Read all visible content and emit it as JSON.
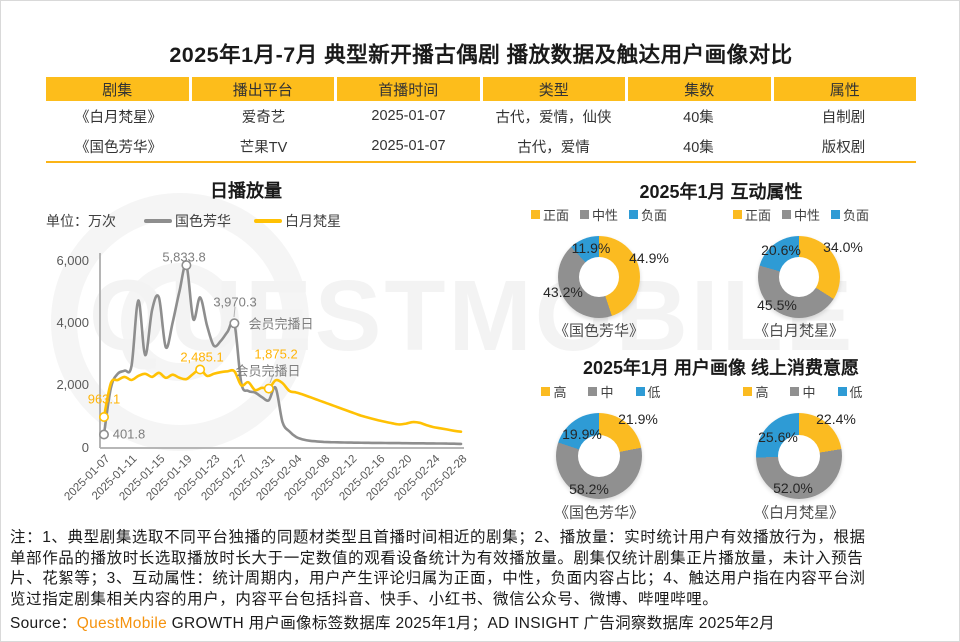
{
  "title": "2025年1月-7月 典型新开播古偶剧 播放数据及触达用户画像对比",
  "table": {
    "headers": [
      "剧集",
      "播出平台",
      "首播时间",
      "类型",
      "集数",
      "属性"
    ],
    "rows": [
      [
        "《白月梵星》",
        "爱奇艺",
        "2025-01-07",
        "古代，爱情，仙侠",
        "40集",
        "自制剧"
      ],
      [
        "《国色芳华》",
        "芒果TV",
        "2025-01-07",
        "古代，爱情",
        "40集",
        "版权剧"
      ]
    ]
  },
  "chart_data": [
    {
      "id": "daily-plays",
      "type": "line",
      "title": "日播放量",
      "unit": "单位：万次",
      "ylim": [
        0,
        6000
      ],
      "y_tick_labels": [
        "6,000",
        "4,000",
        "2,000",
        "0"
      ],
      "x_tick_labels": [
        "2025-01-07",
        "2025-01-11",
        "2025-01-15",
        "2025-01-19",
        "2025-01-23",
        "2025-01-27",
        "2025-01-31",
        "2025-02-04",
        "2025-02-08",
        "2025-02-12",
        "2025-02-16",
        "2025-02-20",
        "2025-02-24",
        "2025-02-28"
      ],
      "x_tick_indices": [
        0,
        4,
        8,
        12,
        16,
        20,
        24,
        28,
        32,
        36,
        40,
        44,
        48,
        52
      ],
      "x": [
        "2025-01-07",
        "2025-01-08",
        "2025-01-09",
        "2025-01-10",
        "2025-01-11",
        "2025-01-12",
        "2025-01-13",
        "2025-01-14",
        "2025-01-15",
        "2025-01-16",
        "2025-01-17",
        "2025-01-18",
        "2025-01-19",
        "2025-01-20",
        "2025-01-21",
        "2025-01-22",
        "2025-01-23",
        "2025-01-24",
        "2025-01-25",
        "2025-01-26",
        "2025-01-27",
        "2025-01-28",
        "2025-01-29",
        "2025-01-30",
        "2025-01-31",
        "2025-02-01",
        "2025-02-02",
        "2025-02-03",
        "2025-02-04",
        "2025-02-05",
        "2025-02-06",
        "2025-02-07",
        "2025-02-08",
        "2025-02-09",
        "2025-02-10",
        "2025-02-11",
        "2025-02-12",
        "2025-02-13",
        "2025-02-14",
        "2025-02-15",
        "2025-02-16",
        "2025-02-17",
        "2025-02-18",
        "2025-02-19",
        "2025-02-20",
        "2025-02-21",
        "2025-02-22",
        "2025-02-23",
        "2025-02-24",
        "2025-02-25",
        "2025-02-26",
        "2025-02-27",
        "2025-02-28"
      ],
      "series": [
        {
          "name": "国色芳华",
          "color": "#8E8E8E",
          "values": [
            401.8,
            1900,
            2350,
            2450,
            2600,
            4700,
            2950,
            4400,
            4800,
            3200,
            4000,
            5000,
            5833.8,
            4100,
            4800,
            3900,
            3250,
            3400,
            3700,
            3970.3,
            2050,
            1800,
            1750,
            1600,
            1500,
            1900,
            800,
            500,
            320,
            240,
            200,
            180,
            165,
            155,
            150,
            145,
            140,
            138,
            135,
            132,
            130,
            128,
            126,
            124,
            122,
            120,
            118,
            116,
            114,
            112,
            110,
            105,
            100
          ]
        },
        {
          "name": "白月梵星",
          "color": "#FFC104",
          "values": [
            963.1,
            2050,
            2150,
            2250,
            2150,
            2280,
            2350,
            2250,
            2380,
            2220,
            2320,
            2220,
            2180,
            2350,
            2485.1,
            2280,
            2350,
            2400,
            2430,
            2430,
            1980,
            2080,
            1830,
            1900,
            1875.2,
            2140,
            2050,
            1800,
            1750,
            1680,
            1600,
            1520,
            1440,
            1360,
            1280,
            1200,
            1120,
            1040,
            970,
            910,
            855,
            805,
            760,
            725,
            750,
            800,
            775,
            700,
            640,
            600,
            560,
            520,
            490
          ]
        }
      ],
      "callouts": [
        {
          "series": "国色芳华",
          "date": "2025-01-07",
          "value": 401.8,
          "label": "401.8"
        },
        {
          "series": "国色芳华",
          "date": "2025-01-19",
          "value": 5833.8,
          "label": "5,833.8"
        },
        {
          "series": "国色芳华",
          "date": "2025-01-26",
          "value": 3970.3,
          "label": "3,970.3",
          "note": "会员完播日"
        },
        {
          "series": "白月梵星",
          "date": "2025-01-07",
          "value": 963.1,
          "label": "963.1"
        },
        {
          "series": "白月梵星",
          "date": "2025-01-21",
          "value": 2485.1,
          "label": "2,485.1"
        },
        {
          "series": "白月梵星",
          "date": "2025-01-31",
          "value": 1875.2,
          "label": "1,875.2",
          "note": "会员完播日"
        }
      ]
    },
    {
      "id": "interaction",
      "type": "pie",
      "title": "2025年1月 互动属性",
      "legend": [
        "正面",
        "中性",
        "负面"
      ],
      "colors": [
        "#FBBB21",
        "#909090",
        "#2E9BD5"
      ],
      "charts": [
        {
          "name": "《国色芳华》",
          "values": [
            44.9,
            43.2,
            11.9
          ],
          "labels": [
            "44.9%",
            "43.2%",
            "11.9%"
          ]
        },
        {
          "name": "《白月梵星》",
          "values": [
            34.0,
            45.5,
            20.6
          ],
          "labels": [
            "34.0%",
            "45.5%",
            "20.6%"
          ]
        }
      ]
    },
    {
      "id": "consumption",
      "type": "pie",
      "title": "2025年1月 用户画像 线上消费意愿",
      "legend": [
        "高",
        "中",
        "低"
      ],
      "colors": [
        "#FBBB21",
        "#909090",
        "#2E9BD5"
      ],
      "charts": [
        {
          "name": "《国色芳华》",
          "values": [
            21.9,
            58.2,
            19.9
          ],
          "labels": [
            "21.9%",
            "58.2%",
            "19.9%"
          ]
        },
        {
          "name": "《白月梵星》",
          "values": [
            22.4,
            52.0,
            25.6
          ],
          "labels": [
            "22.4%",
            "52.0%",
            "25.6%"
          ]
        }
      ]
    }
  ],
  "notes": {
    "lines": [
      "注：1、典型剧集选取不同平台独播的同题材类型且首播时间相近的剧集；2、播放量：实时统计用户有效播放行为，根据",
      "单部作品的播放时长选取播放时长大于一定数值的观看设备统计为有效播放量。剧集仅统计剧集正片播放量，未计入预告",
      "片、花絮等；3、互动属性：统计周期内，用户产生评论归属为正面，中性，负面内容占比；4、触达用户指在内容平台浏",
      "览过指定剧集相关内容的用户，内容平台包括抖音、快手、小红书、微信公众号、微博、哔哩哔哩。"
    ]
  },
  "source": {
    "prefix": "Source：",
    "brand": "QuestMobile",
    "text": " GROWTH 用户画像标签数据库 2025年1月；AD INSIGHT 广告洞察数据库 2025年2月"
  },
  "watermark": "QUESTMOBILE"
}
